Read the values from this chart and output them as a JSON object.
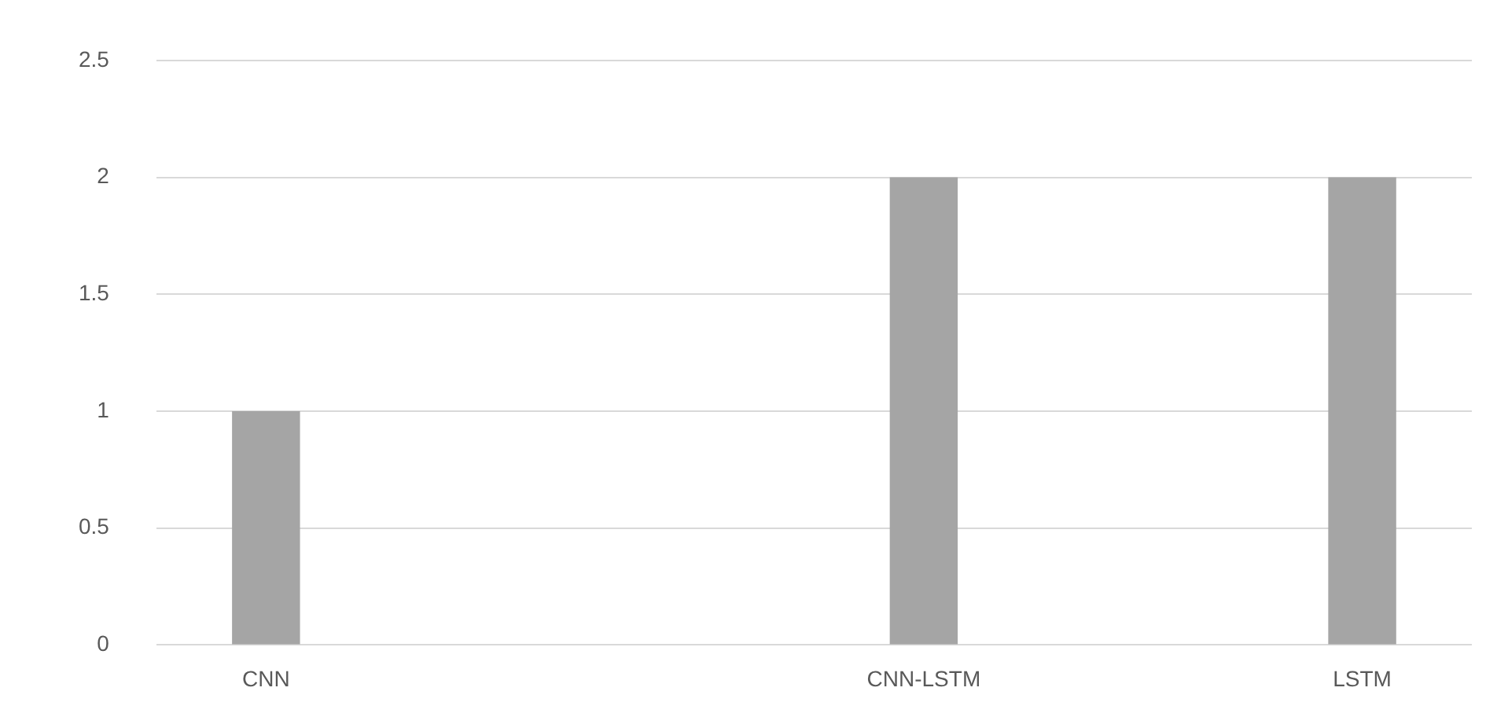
{
  "chart_data": {
    "type": "bar",
    "categories": [
      "CNN",
      null,
      null,
      "CNN-LSTM",
      null,
      "LSTM"
    ],
    "values": [
      1,
      null,
      null,
      2,
      null,
      2
    ],
    "color": "#a5a5a5",
    "ylim": [
      0,
      2.5
    ],
    "yticks": [
      0,
      0.5,
      1,
      1.5,
      2,
      2.5
    ],
    "grid": "y",
    "legend": false
  }
}
